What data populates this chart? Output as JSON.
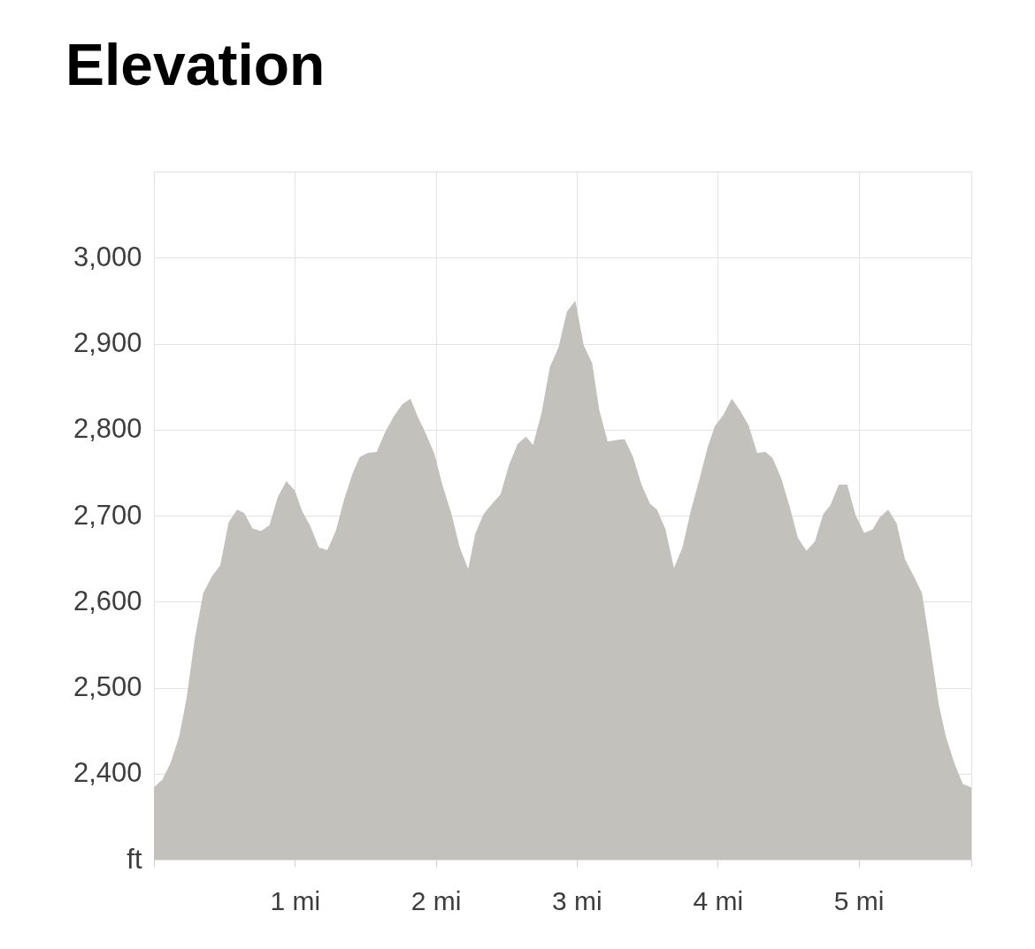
{
  "chart_data": {
    "type": "area",
    "title": "Elevation",
    "x": [
      0,
      0.06,
      0.12,
      0.18,
      0.23,
      0.29,
      0.35,
      0.41,
      0.47,
      0.53,
      0.59,
      0.64,
      0.7,
      0.76,
      0.82,
      0.88,
      0.94,
      1.0,
      1.05,
      1.11,
      1.17,
      1.23,
      1.29,
      1.35,
      1.41,
      1.46,
      1.52,
      1.58,
      1.64,
      1.7,
      1.76,
      1.82,
      1.87,
      1.93,
      1.99,
      2.05,
      2.11,
      2.17,
      2.23,
      2.28,
      2.34,
      2.4,
      2.46,
      2.52,
      2.58,
      2.64,
      2.69,
      2.75,
      2.81,
      2.87,
      2.93,
      2.99,
      3.05,
      3.11,
      3.16,
      3.22,
      3.28,
      3.34,
      3.4,
      3.46,
      3.52,
      3.57,
      3.63,
      3.69,
      3.75,
      3.81,
      3.87,
      3.93,
      3.98,
      4.04,
      4.1,
      4.16,
      4.22,
      4.28,
      4.34,
      4.39,
      4.45,
      4.51,
      4.57,
      4.63,
      4.69,
      4.75,
      4.8,
      4.86,
      4.92,
      4.98,
      5.04,
      5.1,
      5.15,
      5.21,
      5.27,
      5.33,
      5.39,
      5.45,
      5.51,
      5.57,
      5.62,
      5.68,
      5.74,
      5.8
    ],
    "values": [
      2384,
      2393,
      2413,
      2444,
      2486,
      2557,
      2610,
      2629,
      2642,
      2692,
      2707,
      2703,
      2685,
      2682,
      2689,
      2722,
      2740,
      2729,
      2706,
      2688,
      2663,
      2660,
      2682,
      2719,
      2749,
      2768,
      2773,
      2774,
      2797,
      2815,
      2829,
      2836,
      2816,
      2795,
      2772,
      2734,
      2703,
      2663,
      2638,
      2679,
      2702,
      2714,
      2725,
      2759,
      2783,
      2792,
      2782,
      2819,
      2873,
      2895,
      2937,
      2950,
      2898,
      2877,
      2823,
      2786,
      2788,
      2789,
      2768,
      2736,
      2714,
      2707,
      2684,
      2639,
      2663,
      2706,
      2742,
      2780,
      2804,
      2817,
      2836,
      2822,
      2805,
      2773,
      2774,
      2767,
      2744,
      2711,
      2674,
      2659,
      2670,
      2702,
      2712,
      2736,
      2736,
      2700,
      2680,
      2684,
      2698,
      2707,
      2691,
      2649,
      2630,
      2610,
      2546,
      2480,
      2443,
      2412,
      2388,
      2384
    ],
    "color": "#c2c1bc",
    "xlim": [
      0,
      5.8
    ],
    "ylim": [
      2300,
      3100
    ],
    "xticks": [
      {
        "value": 0,
        "label": null
      },
      {
        "value": 1,
        "label": "1 mi"
      },
      {
        "value": 2,
        "label": "2 mi"
      },
      {
        "value": 3,
        "label": "3 mi"
      },
      {
        "value": 4,
        "label": "4 mi"
      },
      {
        "value": 5,
        "label": "5 mi"
      },
      {
        "value": 5.8,
        "label": null
      }
    ],
    "yticks": [
      {
        "value": 2300,
        "label": "ft"
      },
      {
        "value": 2400,
        "label": "2,400"
      },
      {
        "value": 2500,
        "label": "2,500"
      },
      {
        "value": 2600,
        "label": "2,600"
      },
      {
        "value": 2700,
        "label": "2,700"
      },
      {
        "value": 2800,
        "label": "2,800"
      },
      {
        "value": 2900,
        "label": "2,900"
      },
      {
        "value": 3000,
        "label": "3,000"
      }
    ],
    "grid": true
  }
}
